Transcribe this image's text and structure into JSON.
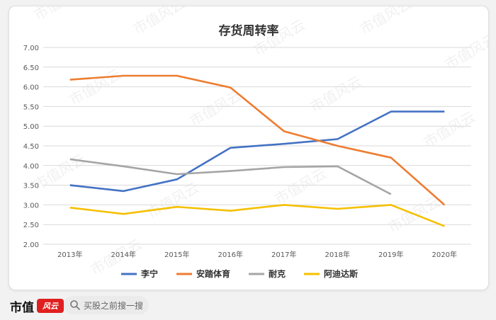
{
  "watermark": "市值风云",
  "chart_data": {
    "type": "line",
    "title": "存货周转率",
    "categories": [
      "2013年",
      "2014年",
      "2015年",
      "2016年",
      "2017年",
      "2018年",
      "2019年",
      "2020年"
    ],
    "ylim": [
      2.0,
      7.0
    ],
    "yticks": [
      "2.00",
      "2.50",
      "3.00",
      "3.50",
      "4.00",
      "4.50",
      "5.00",
      "5.50",
      "6.00",
      "6.50",
      "7.00"
    ],
    "grid": true,
    "legend_position": "bottom",
    "series": [
      {
        "name": "李宁",
        "color": "#4472c4",
        "values": [
          3.5,
          3.35,
          3.65,
          4.45,
          4.55,
          4.67,
          5.37,
          5.37
        ]
      },
      {
        "name": "安踏体育",
        "color": "#ed7d31",
        "values": [
          6.18,
          6.28,
          6.28,
          5.98,
          4.87,
          4.5,
          4.2,
          3.0
        ]
      },
      {
        "name": "耐克",
        "color": "#a5a5a5",
        "values": [
          4.16,
          3.98,
          3.78,
          3.86,
          3.96,
          3.98,
          3.27,
          null
        ]
      },
      {
        "name": "阿迪达斯",
        "color": "#f5c000",
        "values": [
          2.93,
          2.77,
          2.95,
          2.85,
          3.0,
          2.9,
          3.0,
          2.46
        ]
      }
    ]
  },
  "footer": {
    "brand": "市值",
    "logo_text": "风云",
    "search_placeholder": "买股之前搜一搜"
  }
}
